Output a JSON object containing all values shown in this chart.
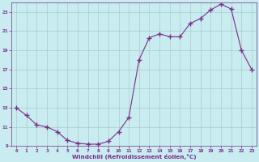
{
  "x": [
    0,
    1,
    2,
    3,
    4,
    5,
    6,
    7,
    8,
    9,
    10,
    11,
    12,
    13,
    14,
    15,
    16,
    17,
    18,
    19,
    20,
    21,
    22,
    23
  ],
  "y": [
    13.0,
    12.2,
    11.2,
    11.0,
    10.5,
    9.6,
    9.3,
    9.2,
    9.2,
    9.5,
    10.5,
    12.0,
    18.0,
    20.3,
    20.7,
    20.4,
    20.4,
    21.8,
    22.3,
    23.2,
    23.8,
    23.3,
    19.0,
    17.0
  ],
  "line_color": "#7B2D8B",
  "marker": "D",
  "marker_size": 2.5,
  "bg_color": "#C8ECF0",
  "grid_color": "#AACCCC",
  "xlabel": "Windchill (Refroidissement éolien,°C)",
  "xlabel_color": "#7B2D8B",
  "tick_color": "#7B2D8B",
  "ylim": [
    9,
    24
  ],
  "xlim": [
    -0.5,
    23.5
  ],
  "yticks": [
    9,
    11,
    13,
    15,
    17,
    19,
    21,
    23
  ],
  "xticks": [
    0,
    1,
    2,
    3,
    4,
    5,
    6,
    7,
    8,
    9,
    10,
    11,
    12,
    13,
    14,
    15,
    16,
    17,
    18,
    19,
    20,
    21,
    22,
    23
  ],
  "figsize": [
    3.2,
    2.0
  ],
  "dpi": 100
}
